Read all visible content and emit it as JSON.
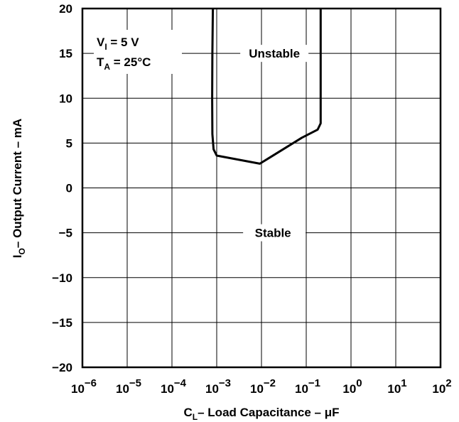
{
  "chart_data": {
    "type": "line",
    "title": "",
    "xlabel": {
      "main": "C",
      "sub": "L",
      "rest": "– Load Capacitance – μF"
    },
    "ylabel": {
      "main": "I",
      "sub": "O",
      "rest": "– Output Current – mA"
    },
    "x_scale": "log",
    "xlim": [
      1e-06,
      100
    ],
    "ylim": [
      -20,
      20
    ],
    "grid": true,
    "x_ticks": [
      {
        "base": "10",
        "exp": "−6"
      },
      {
        "base": "10",
        "exp": "−5"
      },
      {
        "base": "10",
        "exp": "−4"
      },
      {
        "base": "10",
        "exp": "−3"
      },
      {
        "base": "10",
        "exp": "−2"
      },
      {
        "base": "10",
        "exp": "−1"
      },
      {
        "base": "10",
        "exp": "0"
      },
      {
        "base": "10",
        "exp": "1"
      },
      {
        "base": "10",
        "exp": "2"
      }
    ],
    "y_ticks": [
      "20",
      "15",
      "10",
      "5",
      "0",
      "−5",
      "−10",
      "−15",
      "−20"
    ],
    "annotations": {
      "cond1": {
        "main": "V",
        "sub": "I",
        "rest": " = 5 V"
      },
      "cond2": {
        "main": "T",
        "sub": "A",
        "rest": " = 25°C"
      },
      "unstable": "Unstable",
      "stable": "Stable"
    },
    "series": [
      {
        "x": [
          0.00082,
          0.0008,
          0.00079,
          0.0008,
          0.00085,
          0.001,
          0.0092,
          0.08,
          0.18,
          0.21,
          0.21
        ],
        "y": [
          20,
          15,
          10,
          6,
          4.3,
          3.6,
          2.7,
          5.6,
          6.5,
          7.2,
          20
        ]
      }
    ]
  }
}
